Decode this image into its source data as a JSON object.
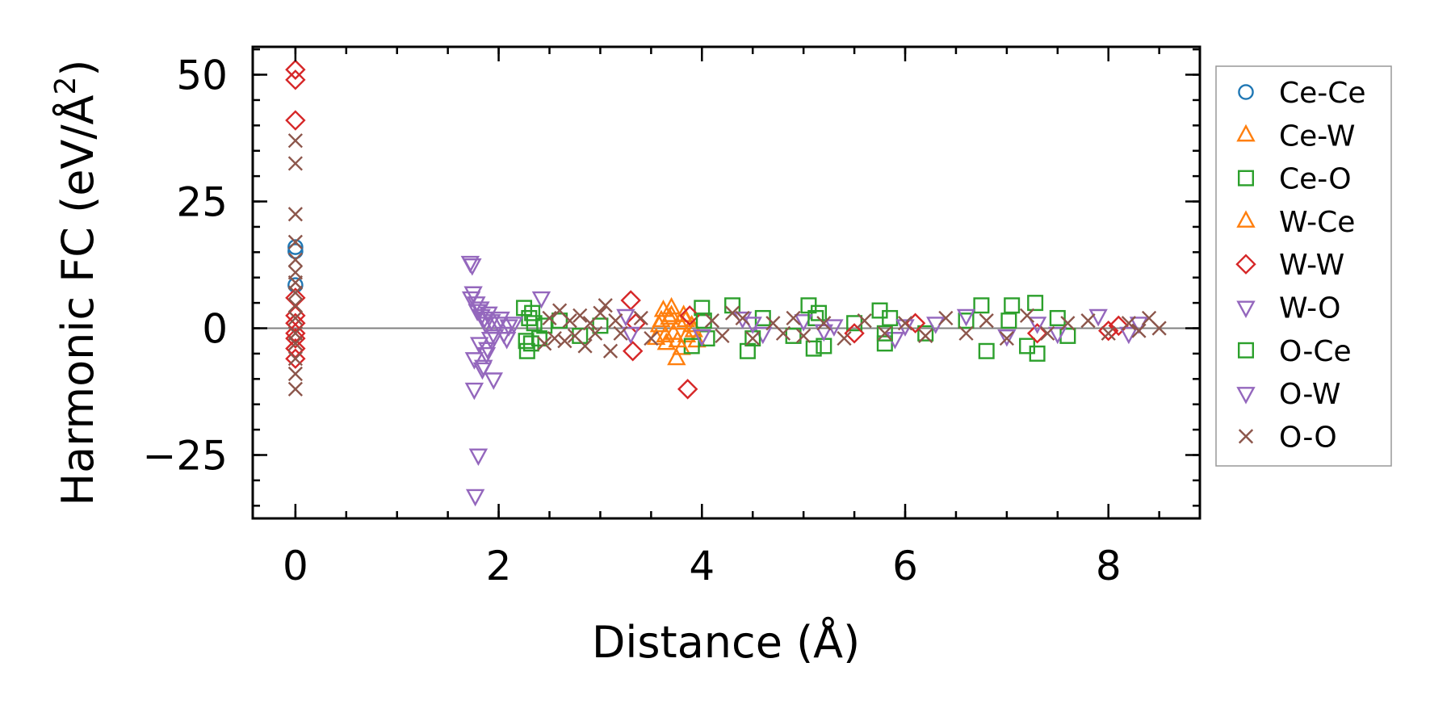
{
  "chart_data": {
    "type": "scatter",
    "xlabel": "Distance (Å)",
    "ylabel_main": "Harmonic FC (eV/Å",
    "ylabel_sup": "2",
    "ylabel_close": ")",
    "xlim": [
      -0.42,
      8.9
    ],
    "ylim": [
      -37.5,
      55.5
    ],
    "xticks": [
      0,
      2,
      4,
      6,
      8
    ],
    "xtick_labels": [
      "0",
      "2",
      "4",
      "6",
      "8"
    ],
    "yticks": [
      -25,
      0,
      25,
      50
    ],
    "ytick_labels": [
      "−25",
      "0",
      "25",
      "50"
    ],
    "x_minor_step": 0.5,
    "y_minor_step": 5,
    "zero_line": true,
    "legend_position": "right",
    "series": [
      {
        "name": "Ce-Ce",
        "marker": "circle",
        "color": "#1f77b4",
        "x": [
          0,
          0,
          0
        ],
        "y": [
          16.0,
          15.2,
          8.5
        ]
      },
      {
        "name": "Ce-W",
        "marker": "triangle-up",
        "color": "#ff7f0e",
        "x": [
          3.55,
          3.6,
          3.62,
          3.65,
          3.68,
          3.7,
          3.72,
          3.75,
          3.78,
          3.8,
          3.82,
          3.85,
          3.9,
          3.95
        ],
        "y": [
          -2.0,
          1.5,
          3.5,
          -3.0,
          2.0,
          4.0,
          -1.0,
          -6.0,
          1.0,
          -4.0,
          2.5,
          -1.5,
          0.5,
          -2.5
        ]
      },
      {
        "name": "Ce-O",
        "marker": "square",
        "color": "#2ca02c",
        "x": [
          2.25,
          2.28,
          2.3,
          2.32,
          2.35,
          2.4,
          2.6,
          2.8,
          3.0,
          3.9,
          4.0,
          4.05,
          4.3,
          4.45,
          4.6,
          4.9,
          5.05,
          5.1,
          5.15,
          5.2,
          5.5,
          5.75,
          5.8,
          5.85,
          6.2,
          6.6,
          6.75,
          6.8,
          7.05,
          7.2,
          7.28,
          7.3,
          7.5,
          7.6
        ],
        "y": [
          4.0,
          -4.5,
          2.0,
          -3.0,
          1.0,
          -2.0,
          1.5,
          -1.5,
          0.5,
          -3.5,
          4.0,
          -2.0,
          4.5,
          -4.5,
          2.0,
          -1.5,
          4.5,
          -4.0,
          3.0,
          -3.5,
          1.0,
          3.5,
          -3.0,
          2.0,
          -1.0,
          1.5,
          4.5,
          -4.5,
          4.5,
          -3.5,
          5.0,
          -5.0,
          2.0,
          -1.5
        ]
      },
      {
        "name": "W-Ce",
        "marker": "triangle-up",
        "color": "#ff7f0e",
        "x": [
          3.58,
          3.64,
          3.7,
          3.76,
          3.84,
          3.92
        ],
        "y": [
          0.5,
          -1.5,
          2.5,
          -2.5,
          1.5,
          -0.5
        ]
      },
      {
        "name": "W-W",
        "marker": "diamond",
        "color": "#d62728",
        "x": [
          0,
          0,
          0,
          0,
          0,
          0,
          0,
          0,
          0,
          0,
          3.3,
          3.32,
          3.35,
          3.86,
          3.88,
          5.5,
          6.1,
          7.3,
          8.0,
          8.1
        ],
        "y": [
          51.0,
          49.0,
          41.0,
          6.0,
          2.5,
          1.0,
          -2.0,
          -4.0,
          -6.0,
          -1.0,
          5.5,
          -4.5,
          1.0,
          -12.0,
          2.5,
          -1.0,
          1.0,
          -1.0,
          -0.5,
          0.5
        ]
      },
      {
        "name": "W-O",
        "marker": "triangle-down",
        "color": "#9467bd",
        "x": [
          1.72,
          1.74,
          1.75,
          1.76,
          1.77,
          1.78,
          1.8,
          1.82,
          1.84,
          1.86,
          1.88,
          1.9,
          1.92,
          1.95,
          2.0,
          2.05,
          2.1,
          2.42,
          3.25,
          4.0,
          4.4,
          4.6,
          5.0,
          5.3,
          5.9,
          6.3,
          6.6,
          7.0,
          7.3,
          7.9,
          8.2
        ],
        "y": [
          13.0,
          12.5,
          7.0,
          -12.0,
          -33.0,
          5.0,
          -25.0,
          4.0,
          -8.0,
          2.0,
          -5.0,
          3.0,
          -2.0,
          -10.0,
          1.0,
          -1.0,
          0.5,
          6.0,
          2.5,
          -1.5,
          2.0,
          -1.0,
          1.5,
          0.5,
          -2.0,
          1.0,
          2.5,
          -1.5,
          1.0,
          2.5,
          -1.0
        ]
      },
      {
        "name": "O-Ce",
        "marker": "square",
        "color": "#2ca02c",
        "x": [
          2.27,
          2.33,
          2.45,
          4.02,
          4.5,
          5.12,
          5.8,
          7.02
        ],
        "y": [
          -2.5,
          3.0,
          0.5,
          1.5,
          -2.0,
          2.0,
          -1.0,
          1.5
        ]
      },
      {
        "name": "O-W",
        "marker": "triangle-down",
        "color": "#9467bd",
        "x": [
          1.73,
          1.76,
          1.79,
          1.81,
          1.83,
          1.85,
          1.87,
          1.89,
          1.93,
          1.96,
          2.02,
          2.08,
          2.15,
          3.3,
          4.5,
          5.2,
          6.0,
          7.5,
          8.3
        ],
        "y": [
          6.0,
          -6.0,
          3.5,
          -3.0,
          2.5,
          -7.5,
          1.0,
          -4.0,
          1.5,
          -1.5,
          2.0,
          -2.0,
          1.0,
          -1.0,
          1.0,
          -0.5,
          0.5,
          -1.0,
          1.0
        ]
      },
      {
        "name": "O-O",
        "marker": "x",
        "color": "#8c564b",
        "x": [
          0,
          0,
          0,
          0,
          0,
          0,
          0,
          0,
          0,
          0,
          0,
          0,
          0,
          0,
          0,
          2.45,
          2.5,
          2.55,
          2.6,
          2.65,
          2.7,
          2.75,
          2.8,
          2.85,
          2.9,
          2.95,
          3.0,
          3.05,
          3.1,
          3.15,
          3.2,
          3.4,
          3.5,
          4.1,
          4.2,
          4.3,
          4.4,
          4.5,
          4.7,
          4.8,
          4.9,
          5.0,
          5.2,
          5.4,
          5.6,
          5.8,
          6.0,
          6.2,
          6.4,
          6.6,
          6.8,
          7.0,
          7.2,
          7.4,
          7.6,
          7.8,
          8.0,
          8.2,
          8.3,
          8.4,
          8.5
        ],
        "y": [
          37.0,
          32.5,
          22.5,
          17.0,
          13.5,
          11.0,
          9.0,
          7.0,
          4.5,
          2.0,
          -1.0,
          -3.0,
          -6.0,
          -9.0,
          -12.0,
          -3.0,
          2.0,
          -2.0,
          3.5,
          -2.5,
          1.5,
          -1.5,
          2.5,
          -3.5,
          1.0,
          -1.0,
          3.0,
          4.5,
          -4.5,
          1.5,
          -1.0,
          2.0,
          -2.0,
          1.5,
          -1.5,
          3.0,
          2.0,
          -2.0,
          1.0,
          -1.0,
          2.0,
          -1.5,
          1.0,
          -2.0,
          1.5,
          -1.0,
          1.0,
          -1.5,
          2.0,
          -1.0,
          1.5,
          -2.0,
          2.5,
          -1.0,
          1.0,
          1.5,
          -1.0,
          1.0,
          -0.5,
          2.0,
          0.0
        ]
      }
    ]
  }
}
